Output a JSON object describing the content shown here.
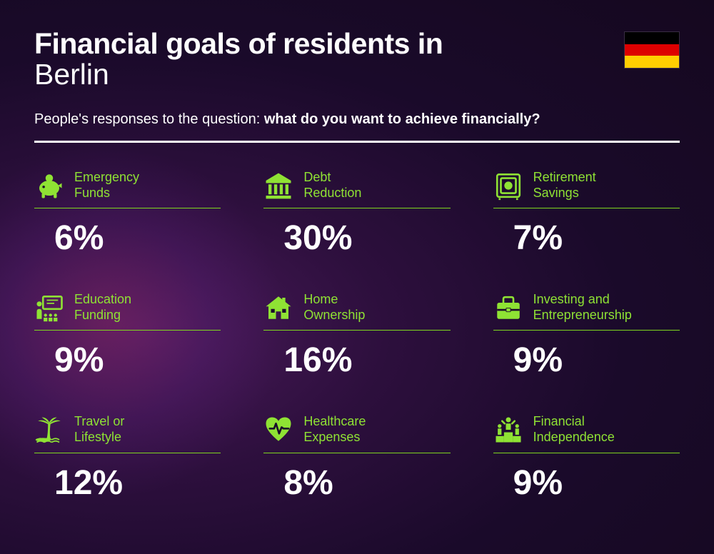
{
  "header": {
    "title_line1": "Financial goals of residents in",
    "title_line2": "Berlin",
    "subtitle_prefix": "People's responses to the question: ",
    "subtitle_bold": "what do you want to achieve financially?"
  },
  "flag": {
    "stripes": [
      "#000000",
      "#dd0000",
      "#ffce00"
    ]
  },
  "accent_color": "#8fe234",
  "items": [
    {
      "label": "Emergency Funds",
      "value": "6%",
      "icon": "piggy-bank"
    },
    {
      "label": "Debt Reduction",
      "value": "30%",
      "icon": "bank"
    },
    {
      "label": "Retirement Savings",
      "value": "7%",
      "icon": "safe"
    },
    {
      "label": "Education Funding",
      "value": "9%",
      "icon": "presentation"
    },
    {
      "label": "Home Ownership",
      "value": "16%",
      "icon": "house"
    },
    {
      "label": "Investing and Entrepreneurship",
      "value": "9%",
      "icon": "briefcase"
    },
    {
      "label": "Travel or Lifestyle",
      "value": "12%",
      "icon": "palm"
    },
    {
      "label": "Healthcare Expenses",
      "value": "8%",
      "icon": "heart-pulse"
    },
    {
      "label": "Financial Independence",
      "value": "9%",
      "icon": "podium"
    }
  ]
}
